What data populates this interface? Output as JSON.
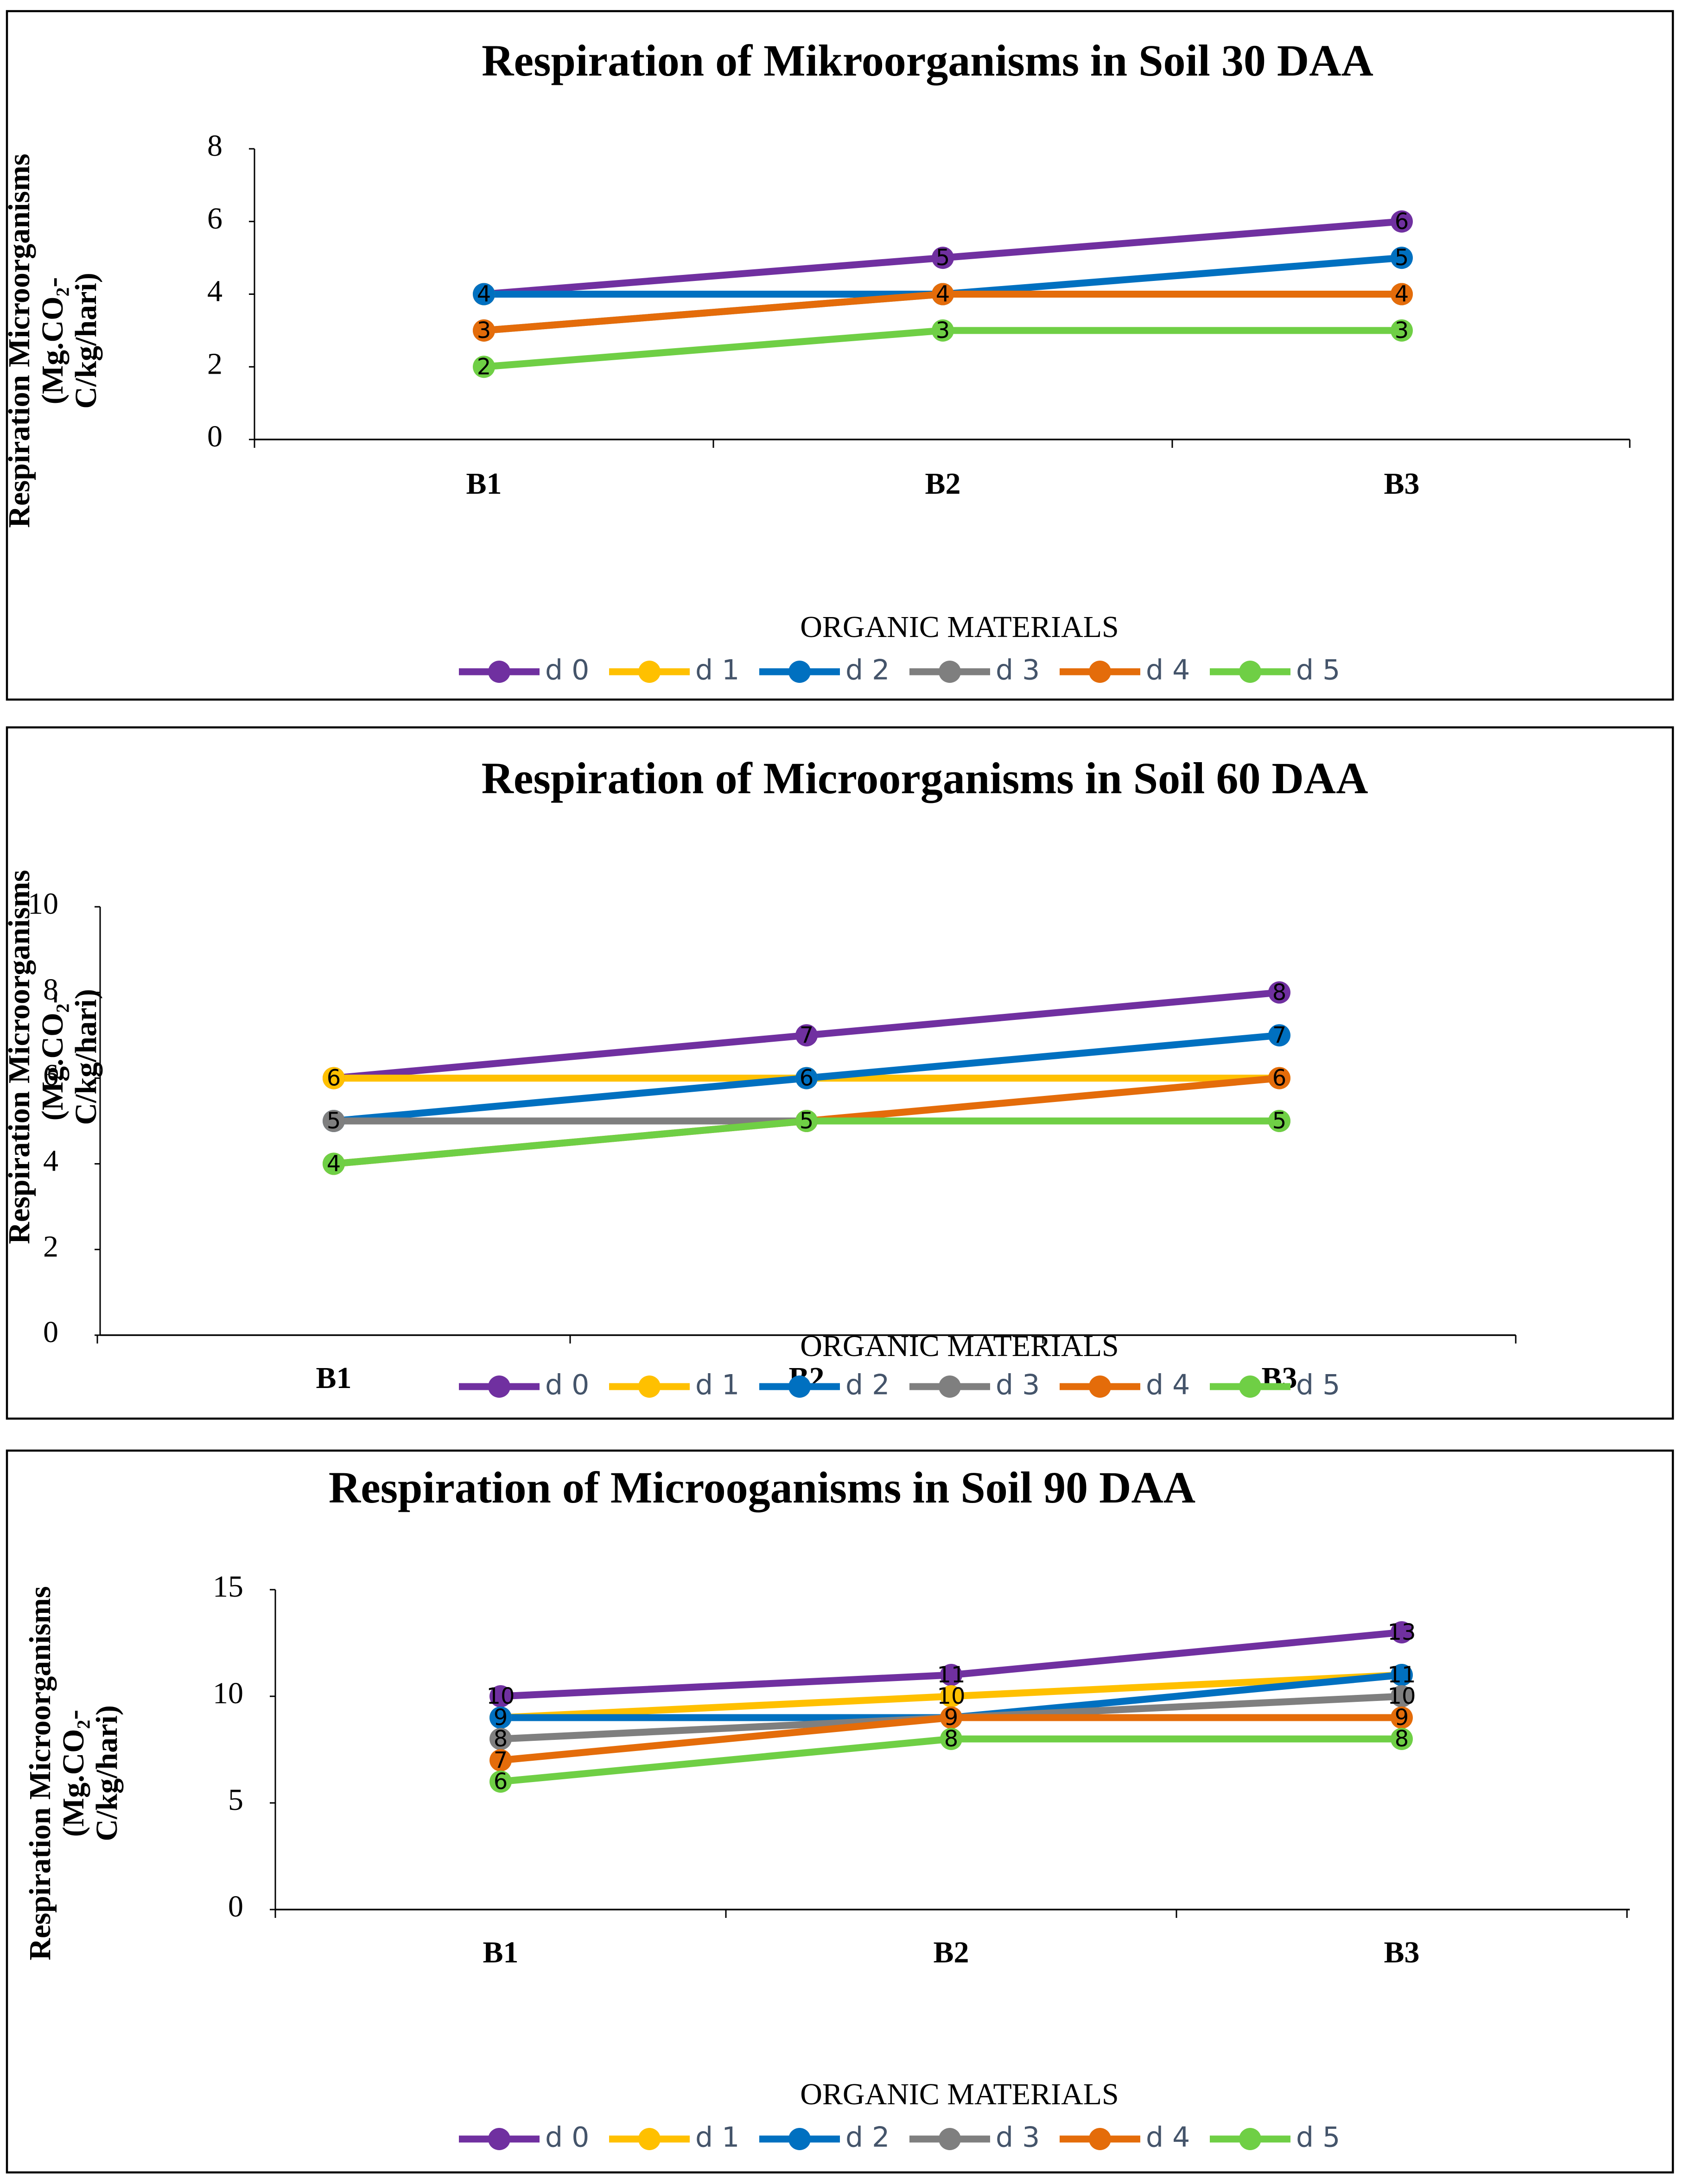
{
  "chart_data": [
    {
      "type": "line",
      "title": "Respiration of Mikroorganisms in Soil 30 DAA",
      "y_label": [
        "Respiration Microorganisms",
        "(Mg.CO₂-",
        "C/kg/hari)"
      ],
      "x_label": "ORGANIC MATERIALS",
      "categories": [
        "B1",
        "B2",
        "B3"
      ],
      "ylim": [
        0,
        8
      ],
      "yticks": [
        0,
        2,
        4,
        6,
        8
      ],
      "series": [
        {
          "name": "d 0",
          "color": "#7030a0",
          "values": [
            4,
            5,
            6
          ]
        },
        {
          "name": "d 1",
          "color": "#ffc000",
          "values": [
            4,
            4,
            4
          ]
        },
        {
          "name": "d 2",
          "color": "#0070c0",
          "values": [
            4,
            4,
            5
          ]
        },
        {
          "name": "d 3",
          "color": "#7f7f7f",
          "values": [
            3,
            4,
            4
          ]
        },
        {
          "name": "d  4",
          "color": "#e46c0a",
          "values": [
            3,
            4,
            4
          ]
        },
        {
          "name": "d 5",
          "color": "#6fcf45",
          "values": [
            2,
            3,
            3
          ]
        }
      ]
    },
    {
      "type": "line",
      "title": "Respiration of Microorganisms in Soil 60 DAA",
      "y_label": [
        "Respiration Microorganisms",
        "(Mg.CO₂-",
        "C/kg/hari)"
      ],
      "x_label": "ORGANIC MATERIALS",
      "categories": [
        "B1",
        "B2",
        "B3"
      ],
      "ylim": [
        0,
        10
      ],
      "yticks": [
        0,
        2,
        4,
        6,
        8,
        10
      ],
      "series": [
        {
          "name": "d 0",
          "color": "#7030a0",
          "values": [
            6,
            7,
            8
          ]
        },
        {
          "name": "d 1",
          "color": "#ffc000",
          "values": [
            6,
            6,
            6
          ]
        },
        {
          "name": "d 2",
          "color": "#0070c0",
          "values": [
            5,
            6,
            7
          ]
        },
        {
          "name": "d 3",
          "color": "#7f7f7f",
          "values": [
            5,
            5,
            5
          ]
        },
        {
          "name": "d  4",
          "color": "#e46c0a",
          "values": [
            4,
            5,
            6
          ]
        },
        {
          "name": "d 5",
          "color": "#6fcf45",
          "values": [
            4,
            5,
            5
          ]
        }
      ]
    },
    {
      "type": "line",
      "title": "Respiration of Microoganisms in Soil 90 DAA",
      "y_label": [
        "Respiration Microorganisms",
        "(Mg.CO₂-",
        "C/kg/hari)"
      ],
      "x_label": "ORGANIC MATERIALS",
      "categories": [
        "B1",
        "B2",
        "B3"
      ],
      "ylim": [
        0,
        15
      ],
      "yticks": [
        0,
        5,
        10,
        15
      ],
      "series": [
        {
          "name": "d 0",
          "color": "#7030a0",
          "values": [
            10,
            11,
            13
          ]
        },
        {
          "name": "d 1",
          "color": "#ffc000",
          "values": [
            9,
            10,
            11
          ]
        },
        {
          "name": "d 2",
          "color": "#0070c0",
          "values": [
            9,
            9,
            11
          ]
        },
        {
          "name": "d 3",
          "color": "#7f7f7f",
          "values": [
            8,
            9,
            10
          ]
        },
        {
          "name": "d  4",
          "color": "#e46c0a",
          "values": [
            7,
            9,
            9
          ]
        },
        {
          "name": "d 5",
          "color": "#6fcf45",
          "values": [
            6,
            8,
            8
          ]
        }
      ]
    }
  ]
}
